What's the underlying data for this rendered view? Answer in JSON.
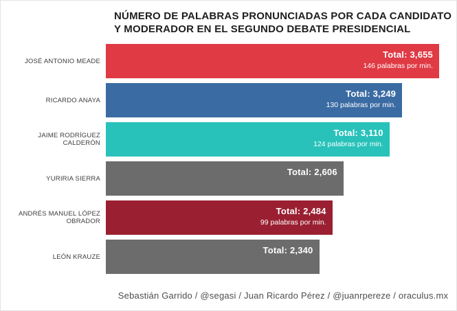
{
  "title": {
    "lines": [
      "NÚMERO DE PALABRAS PRONUNCIADAS POR CADA CANDIDATO",
      "Y MODERADOR EN EL SEGUNDO DEBATE PRESIDENCIAL"
    ]
  },
  "footer": {
    "credit": "Sebastián Garrido / @segasi / Juan Ricardo Pérez / @juanrpereze / oraculus.mx"
  },
  "chart_data": {
    "type": "bar",
    "orientation": "horizontal",
    "title": "NÚMERO DE PALABRAS PRONUNCIADAS POR CADA CANDIDATO Y MODERADOR EN EL SEGUNDO DEBATE PRESIDENCIAL",
    "xlabel": "",
    "ylabel": "",
    "xlim": [
      0,
      3655
    ],
    "grid": false,
    "legend": false,
    "categories": [
      "JOSÉ ANTONIO MEADE",
      "RICARDO ANAYA",
      "JAIME RODRÍGUEZ CALDERÓN",
      "YURIRIA SIERRA",
      "ANDRÉS MANUEL LÓPEZ OBRADOR",
      "LEÓN KRAUZE"
    ],
    "values": [
      3655,
      3249,
      3110,
      2606,
      2484,
      2340
    ],
    "words_per_min": [
      146,
      130,
      124,
      null,
      99,
      null
    ],
    "rows": [
      {
        "label": "JOSÉ ANTONIO MEADE",
        "value": 3655,
        "total_label": "Total: 3,655",
        "rate_label": "146 palabras por min.",
        "color": "#e03a45"
      },
      {
        "label": "RICARDO ANAYA",
        "value": 3249,
        "total_label": "Total: 3,249",
        "rate_label": "130 palabras por min.",
        "color": "#3a6ba3"
      },
      {
        "label": "JAIME RODRÍGUEZ CALDERÓN",
        "value": 3110,
        "total_label": "Total: 3,110",
        "rate_label": "124 palabras por min.",
        "color": "#28c2ba"
      },
      {
        "label": "YURIRIA SIERRA",
        "value": 2606,
        "total_label": "Total: 2,606",
        "rate_label": "",
        "color": "#6c6c6c"
      },
      {
        "label": "ANDRÉS MANUEL LÓPEZ OBRADOR",
        "value": 2484,
        "total_label": "Total: 2,484",
        "rate_label": "99 palabras por min.",
        "color": "#9a2031"
      },
      {
        "label": "LEÓN KRAUZE",
        "value": 2340,
        "total_label": "Total: 2,340",
        "rate_label": "",
        "color": "#6c6c6c"
      }
    ]
  }
}
